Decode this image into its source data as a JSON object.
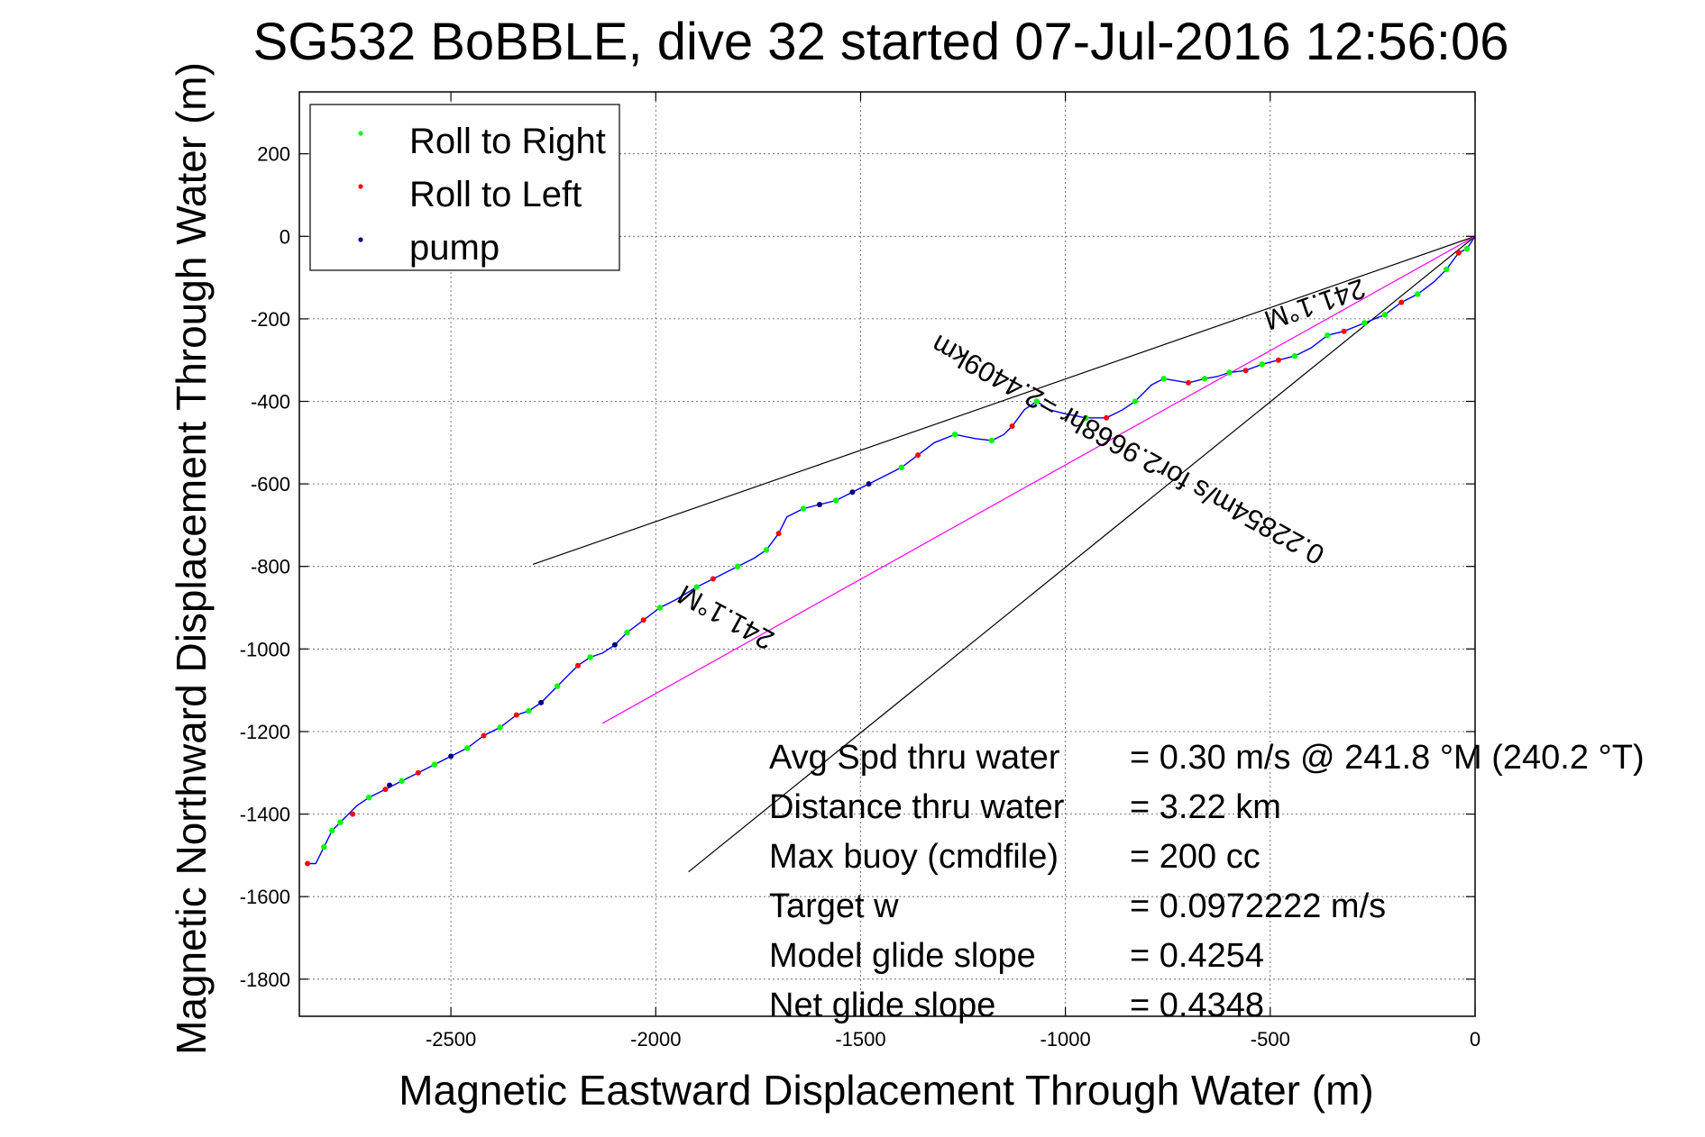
{
  "chart_data": {
    "type": "line",
    "title": "SG532 BoBBLE, dive 32 started 07-Jul-2016 12:56:06",
    "xlabel": "Magnetic Eastward Displacement Through Water (m)",
    "ylabel": "Magnetic Northward Displacement Through Water (m)",
    "xlim": [
      -2870,
      0
    ],
    "ylim": [
      -1890,
      350
    ],
    "xticks": [
      -2500,
      -2000,
      -1500,
      -1000,
      -500,
      0
    ],
    "yticks": [
      200,
      0,
      -200,
      -400,
      -600,
      -800,
      -1000,
      -1200,
      -1400,
      -1600,
      -1800
    ],
    "grid": true,
    "legend_position": "top-left",
    "legend": [
      {
        "label": "Roll to Right",
        "color": "#00ff00"
      },
      {
        "label": "Roll to Left",
        "color": "#ff0000"
      },
      {
        "label": "pump",
        "color": "#000080"
      }
    ],
    "track": {
      "name": "glider track",
      "color": "#0000ff",
      "x": [
        0,
        -20,
        -40,
        -70,
        -100,
        -140,
        -180,
        -220,
        -270,
        -320,
        -360,
        -400,
        -440,
        -480,
        -520,
        -560,
        -600,
        -630,
        -660,
        -700,
        -730,
        -760,
        -790,
        -810,
        -830,
        -860,
        -900,
        -950,
        -1000,
        -1040,
        -1070,
        -1100,
        -1130,
        -1150,
        -1180,
        -1220,
        -1270,
        -1320,
        -1360,
        -1400,
        -1440,
        -1480,
        -1520,
        -1560,
        -1600,
        -1640,
        -1680,
        -1700,
        -1730,
        -1760,
        -1800,
        -1860,
        -1900,
        -1950,
        -1990,
        -2030,
        -2070,
        -2100,
        -2130,
        -2160,
        -2190,
        -2210,
        -2240,
        -2280,
        -2310,
        -2340,
        -2380,
        -2420,
        -2460,
        -2500,
        -2540,
        -2580,
        -2620,
        -2660,
        -2700,
        -2730,
        -2750,
        -2770,
        -2790,
        -2810,
        -2830,
        -2850
      ],
      "y": [
        0,
        -30,
        -40,
        -80,
        -110,
        -140,
        -160,
        -190,
        -210,
        -230,
        -240,
        -270,
        -290,
        -300,
        -310,
        -325,
        -330,
        -340,
        -345,
        -355,
        -350,
        -345,
        -360,
        -380,
        -400,
        -420,
        -440,
        -440,
        -430,
        -420,
        -400,
        -420,
        -460,
        -480,
        -495,
        -490,
        -480,
        -500,
        -530,
        -560,
        -580,
        -600,
        -620,
        -640,
        -650,
        -660,
        -680,
        -720,
        -760,
        -780,
        -800,
        -830,
        -850,
        -880,
        -900,
        -930,
        -960,
        -990,
        -1010,
        -1020,
        -1040,
        -1060,
        -1090,
        -1130,
        -1150,
        -1160,
        -1190,
        -1210,
        -1240,
        -1260,
        -1280,
        -1300,
        -1320,
        -1340,
        -1360,
        -1380,
        -1400,
        -1420,
        -1440,
        -1480,
        -1520,
        -1520
      ]
    },
    "roll_right_points": {
      "x": [
        -20,
        -70,
        -140,
        -220,
        -270,
        -360,
        -440,
        -520,
        -600,
        -660,
        -760,
        -830,
        -950,
        -1070,
        -1180,
        -1270,
        -1400,
        -1560,
        -1640,
        -1730,
        -1800,
        -1900,
        -1990,
        -2070,
        -2160,
        -2240,
        -2310,
        -2380,
        -2460,
        -2540,
        -2620,
        -2700,
        -2770,
        -2790,
        -2810
      ],
      "y": [
        -30,
        -80,
        -140,
        -190,
        -210,
        -240,
        -290,
        -310,
        -330,
        -345,
        -345,
        -400,
        -440,
        -400,
        -495,
        -480,
        -560,
        -640,
        -660,
        -760,
        -800,
        -850,
        -900,
        -960,
        -1020,
        -1090,
        -1150,
        -1190,
        -1240,
        -1280,
        -1320,
        -1360,
        -1420,
        -1440,
        -1480
      ]
    },
    "roll_left_points": {
      "x": [
        -40,
        -180,
        -320,
        -480,
        -560,
        -700,
        -900,
        -1130,
        -1360,
        -1700,
        -1860,
        -2030,
        -2190,
        -2340,
        -2420,
        -2580,
        -2660,
        -2740,
        -2850
      ],
      "y": [
        -40,
        -160,
        -230,
        -300,
        -325,
        -355,
        -440,
        -460,
        -530,
        -720,
        -830,
        -930,
        -1040,
        -1160,
        -1210,
        -1300,
        -1340,
        -1400,
        -1520
      ]
    },
    "pump_points": {
      "x": [
        -1480,
        -1520,
        -1600,
        -2100,
        -2280,
        -2500,
        -2650
      ],
      "y": [
        -600,
        -620,
        -650,
        -990,
        -1130,
        -1260,
        -1330
      ]
    },
    "reference_lines": [
      {
        "name": "upper-bound",
        "color": "#000000",
        "x": [
          0,
          -2300
        ],
        "y": [
          0,
          -795
        ]
      },
      {
        "name": "lower-bound",
        "color": "#000000",
        "x": [
          0,
          -1920
        ],
        "y": [
          0,
          -1540
        ]
      },
      {
        "name": "mean-heading",
        "color": "#ff00ff",
        "x": [
          0,
          -2130
        ],
        "y": [
          0,
          -1180
        ]
      }
    ],
    "annotations": [
      {
        "text": "241.1°M",
        "color": "#000000"
      },
      {
        "text": "241.1°M",
        "color": "#000000"
      },
      {
        "text": "0.22854m/s for2.9668hr =2.4409km",
        "color": "#000000"
      }
    ],
    "stats": [
      {
        "label": "Avg Spd thru water",
        "value": "=  0.30 m/s @ 241.8  °M (240.2 °T)"
      },
      {
        "label": "Distance thru water",
        "value": "=  3.22 km"
      },
      {
        "label": "Max buoy (cmdfile)",
        "value": "= 200 cc"
      },
      {
        "label": "Target w",
        "value": "= 0.0972222 m/s"
      },
      {
        "label": "Model glide slope",
        "value": "= 0.4254"
      },
      {
        "label": "Net glide slope",
        "value": "= 0.4348"
      }
    ]
  }
}
